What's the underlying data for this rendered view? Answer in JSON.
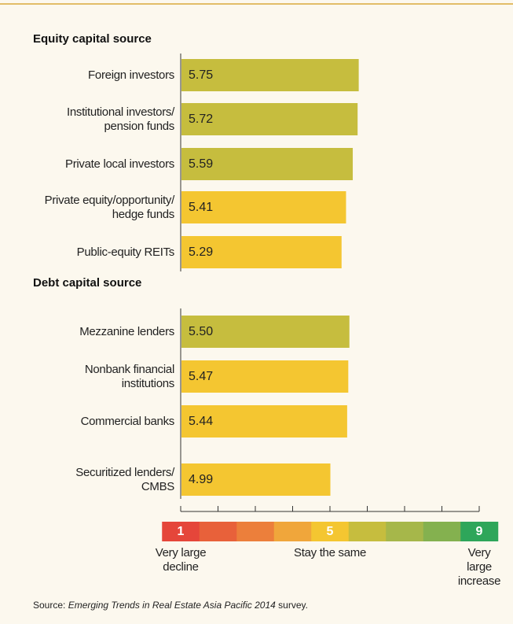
{
  "chart_data": {
    "type": "bar",
    "groups": [
      {
        "title": "Equity capital source",
        "categories": [
          "Foreign investors",
          "Institutional investors/\npension funds",
          "Private local investors",
          "Private equity/opportunity/\nhedge funds",
          "Public-equity REITs"
        ],
        "values": [
          5.75,
          5.72,
          5.59,
          5.41,
          5.29
        ],
        "value_labels": [
          "5.75",
          "5.72",
          "5.59",
          "5.41",
          "5.29"
        ],
        "colors": [
          "#c6bd3e",
          "#c6bd3e",
          "#c6bd3e",
          "#f4c631",
          "#f4c631"
        ]
      },
      {
        "title": "Debt capital source",
        "categories": [
          "Mezzanine lenders",
          "Nonbank financial\ninstitutions",
          "Commercial banks",
          "Securitized lenders/\nCMBS"
        ],
        "values": [
          5.5,
          5.47,
          5.44,
          4.99
        ],
        "value_labels": [
          "5.50",
          "5.47",
          "5.44",
          "4.99"
        ],
        "colors": [
          "#c6bd3e",
          "#f4c631",
          "#f4c631",
          "#f4c631"
        ]
      }
    ],
    "xlim": [
      1,
      9
    ],
    "xticks": [
      1,
      2,
      3,
      4,
      5,
      6,
      7,
      8,
      9
    ],
    "scale_colors": [
      "#e5463a",
      "#e8613a",
      "#ec7f3b",
      "#f0a63b",
      "#f4c631",
      "#c6bd3e",
      "#a6b74a",
      "#84b14f",
      "#2ea65a"
    ],
    "scale_labels": [
      1,
      5,
      9
    ],
    "scale_captions": [
      "Very large\ndecline",
      "Stay the same",
      "Very large\nincrease"
    ]
  },
  "source": {
    "prefix": "Source: ",
    "title": "Emerging Trends in Real Estate Asia Pacific 2014",
    "suffix": " survey."
  }
}
